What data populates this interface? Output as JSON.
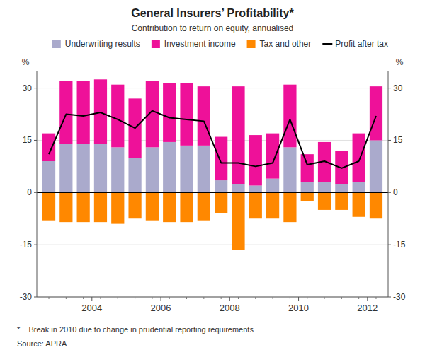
{
  "chart_data": {
    "type": "bar",
    "title": "General Insurers’ Profitability*",
    "subtitle": "Contribution to return on equity, annualised",
    "ylabel": "%",
    "y2label": "%",
    "footnote": "*    Break in 2010 due to change in prudential reporting requirements",
    "source": "Source: APRA",
    "categories": [
      null,
      null,
      null,
      "2004",
      null,
      null,
      null,
      "2006",
      null,
      null,
      null,
      "2008",
      null,
      null,
      null,
      "2010",
      null,
      null,
      null,
      "2012"
    ],
    "series": [
      {
        "name": "Underwriting results",
        "type": "bar",
        "color": "#AAAACC",
        "values": [
          9.0,
          14.0,
          14.0,
          14.0,
          13.0,
          10.0,
          13.0,
          14.5,
          13.5,
          13.5,
          3.5,
          2.5,
          2.0,
          4.0,
          13.0,
          3.0,
          3.0,
          2.5,
          3.0,
          15.0
        ]
      },
      {
        "name": "Investment income",
        "type": "bar",
        "color": "#EE1199",
        "values": [
          8.0,
          18.0,
          18.0,
          18.5,
          18.0,
          17.0,
          19.0,
          17.0,
          18.0,
          17.0,
          12.5,
          28.0,
          14.5,
          13.0,
          18.0,
          8.0,
          11.5,
          9.5,
          14.0,
          15.5
        ]
      },
      {
        "name": "Tax and other",
        "type": "bar",
        "color": "#FF8800",
        "values": [
          -8.0,
          -8.5,
          -8.5,
          -8.5,
          -9.0,
          -7.5,
          -8.0,
          -8.5,
          -8.5,
          -8.0,
          -6.0,
          -16.5,
          -7.5,
          -7.5,
          -8.5,
          -2.5,
          -5.0,
          -5.0,
          -7.0,
          -7.5
        ]
      },
      {
        "name": "Profit after tax",
        "type": "line",
        "color": "#000000",
        "values": [
          11.0,
          22.5,
          22.0,
          23.0,
          21.0,
          18.5,
          23.5,
          21.5,
          21.0,
          20.5,
          8.5,
          8.5,
          7.5,
          8.5,
          21.0,
          8.0,
          9.0,
          7.0,
          9.0,
          22.0
        ]
      }
    ],
    "stacked": true,
    "ylim": [
      -30,
      35
    ],
    "yticks": [
      -30,
      -15,
      0,
      15,
      30
    ],
    "y2lim": [
      -30,
      35
    ],
    "y2ticks": [
      -30,
      -15,
      0,
      15,
      30
    ],
    "grid": true,
    "legend": "top-right"
  }
}
